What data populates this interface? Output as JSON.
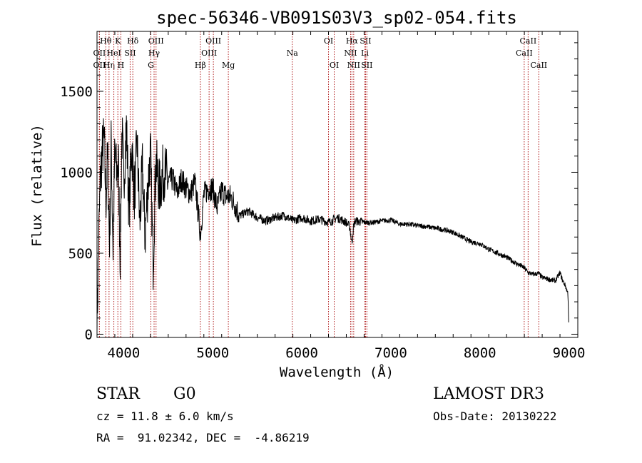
{
  "chart_data": {
    "type": "line",
    "title": "spec-56346-VB091S03V3_sp02-054.fits",
    "xlabel": "Wavelength (Å)",
    "ylabel": "Flux (relative)",
    "xlim": [
      3700,
      9100
    ],
    "ylim": [
      -20,
      1870
    ],
    "x_ticks": [
      4000,
      5000,
      6000,
      7000,
      8000,
      9000
    ],
    "y_ticks": [
      0,
      500,
      1000,
      1500
    ],
    "series": [
      {
        "name": "flux",
        "x": [
          3700,
          3720,
          3740,
          3760,
          3780,
          3800,
          3820,
          3840,
          3860,
          3880,
          3900,
          3920,
          3940,
          3960,
          3980,
          4000,
          4030,
          4060,
          4090,
          4120,
          4150,
          4180,
          4210,
          4240,
          4270,
          4300,
          4330,
          4360,
          4400,
          4450,
          4500,
          4550,
          4600,
          4650,
          4700,
          4750,
          4800,
          4861,
          4900,
          4950,
          5000,
          5050,
          5100,
          5150,
          5200,
          5250,
          5300,
          5400,
          5500,
          5600,
          5700,
          5800,
          5900,
          6000,
          6100,
          6200,
          6300,
          6400,
          6500,
          6540,
          6563,
          6580,
          6600,
          6700,
          6800,
          6900,
          7000,
          7100,
          7200,
          7300,
          7400,
          7500,
          7600,
          7700,
          7800,
          7900,
          8000,
          8100,
          8200,
          8300,
          8400,
          8500,
          8540,
          8600,
          8660,
          8700,
          8800,
          8850,
          8900,
          8930,
          8960,
          8990,
          9000
        ],
        "y": [
          40,
          600,
          1000,
          1130,
          1200,
          820,
          1100,
          560,
          1190,
          520,
          1130,
          980,
          1060,
          460,
          1250,
          960,
          1280,
          760,
          1180,
          850,
          1190,
          670,
          1020,
          600,
          900,
          1120,
          450,
          1060,
          900,
          1010,
          940,
          960,
          870,
          960,
          900,
          870,
          940,
          620,
          860,
          900,
          900,
          780,
          890,
          850,
          850,
          800,
          730,
          760,
          720,
          700,
          720,
          735,
          700,
          720,
          700,
          710,
          690,
          720,
          690,
          660,
          560,
          660,
          700,
          690,
          690,
          700,
          705,
          680,
          680,
          670,
          665,
          655,
          645,
          630,
          600,
          570,
          560,
          525,
          500,
          475,
          440,
          410,
          380,
          370,
          375,
          350,
          335,
          330,
          380,
          330,
          300,
          250,
          30
        ]
      }
    ],
    "lines": [
      {
        "label": "Hθ",
        "x": 3798,
        "row": 1
      },
      {
        "label": "OII",
        "x": 3727,
        "row": 2
      },
      {
        "label": "OII",
        "x": 3727,
        "row": 3
      },
      {
        "label": "Hη",
        "x": 3835,
        "row": 3
      },
      {
        "label": "HeI",
        "x": 3889,
        "row": 2
      },
      {
        "label": "K",
        "x": 3934,
        "row": 1
      },
      {
        "label": "H",
        "x": 3968,
        "row": 3
      },
      {
        "label": "SII",
        "x": 4072,
        "row": 2
      },
      {
        "label": "Hδ",
        "x": 4102,
        "row": 1
      },
      {
        "label": "OIII",
        "x": 4363,
        "row": 1
      },
      {
        "label": "Hγ",
        "x": 4341,
        "row": 2
      },
      {
        "label": "G",
        "x": 4305,
        "row": 3
      },
      {
        "label": "Hβ",
        "x": 4861,
        "row": 3
      },
      {
        "label": "OIII",
        "x": 5007,
        "row": 1
      },
      {
        "label": "OIII",
        "x": 4959,
        "row": 2
      },
      {
        "label": "Mg",
        "x": 5175,
        "row": 3
      },
      {
        "label": "Na",
        "x": 5893,
        "row": 2
      },
      {
        "label": "OI",
        "x": 6300,
        "row": 1
      },
      {
        "label": "OI",
        "x": 6364,
        "row": 3
      },
      {
        "label": "Hα",
        "x": 6563,
        "row": 1
      },
      {
        "label": "NII",
        "x": 6548,
        "row": 2
      },
      {
        "label": "NII",
        "x": 6583,
        "row": 3
      },
      {
        "label": "SII",
        "x": 6716,
        "row": 1
      },
      {
        "label": "Li",
        "x": 6708,
        "row": 2
      },
      {
        "label": "SII",
        "x": 6731,
        "row": 3
      },
      {
        "label": "CaII",
        "x": 8542,
        "row": 1
      },
      {
        "label": "CaII",
        "x": 8498,
        "row": 2
      },
      {
        "label": "CaII",
        "x": 8662,
        "row": 3
      }
    ]
  },
  "info": {
    "class": "STAR",
    "subclass": "G0",
    "survey": "LAMOST DR3",
    "cz": "cz = 11.8 ± 6.0 km/s",
    "obs_date": "Obs-Date: 20130222",
    "coords": "RA =  91.02342, DEC =  -4.86219"
  }
}
